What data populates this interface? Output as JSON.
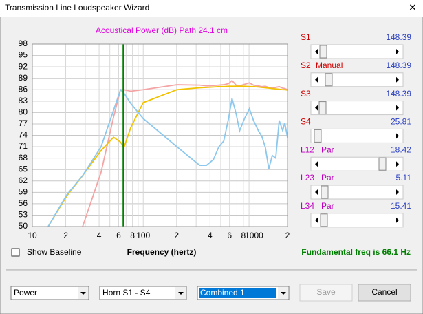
{
  "window": {
    "title": "Transmission Line Loudspeaker Wizard"
  },
  "chart_data": {
    "type": "line",
    "title": "Acoustical Power (dB)   Path 24.1 cm",
    "xlabel": "Frequency (hertz)",
    "xscale": "log",
    "xlim": [
      10,
      2000
    ],
    "ylim": [
      50,
      98
    ],
    "grid": true,
    "yticks": [
      98,
      95,
      92,
      89,
      86,
      83,
      80,
      77,
      74,
      71,
      68,
      65,
      62,
      59,
      56,
      53,
      50
    ],
    "xticks": [
      {
        "value": 10,
        "label": "10"
      },
      {
        "value": 20,
        "label": "2"
      },
      {
        "value": 30,
        "label": null
      },
      {
        "value": 40,
        "label": "4"
      },
      {
        "value": 50,
        "label": null
      },
      {
        "value": 60,
        "label": "6"
      },
      {
        "value": 70,
        "label": null
      },
      {
        "value": 80,
        "label": "8"
      },
      {
        "value": 90,
        "label": null
      },
      {
        "value": 100,
        "label": "100"
      },
      {
        "value": 200,
        "label": "2"
      },
      {
        "value": 300,
        "label": null
      },
      {
        "value": 400,
        "label": "4"
      },
      {
        "value": 500,
        "label": null
      },
      {
        "value": 600,
        "label": "6"
      },
      {
        "value": 700,
        "label": null
      },
      {
        "value": 800,
        "label": "8"
      },
      {
        "value": 900,
        "label": null
      },
      {
        "value": 1000,
        "label": "1000"
      },
      {
        "value": 2000,
        "label": "2"
      }
    ],
    "x": [
      13.9,
      20.4,
      28.4,
      41.7,
      54,
      62.4,
      67,
      77.1,
      100,
      201,
      323,
      372,
      429,
      481,
      532,
      588,
      632,
      688,
      740,
      819,
      906,
      988,
      1093,
      1175,
      1263,
      1357,
      1458,
      1567,
      1684,
      1810,
      1890,
      2000
    ],
    "series": [
      {
        "color": "#f4a4a4",
        "values": [
          null,
          null,
          50,
          64.3,
          78.8,
          86,
          86,
          85.6,
          86,
          87.3,
          87.2,
          87,
          87.1,
          87.2,
          87.3,
          87.6,
          88.4,
          87.2,
          87,
          87.4,
          87.8,
          87.2,
          87,
          86.8,
          86.9,
          86.6,
          86.5,
          86.6,
          86.8,
          86.4,
          86.3,
          86
        ]
      },
      {
        "color": "#f2c200",
        "values": [
          50,
          58,
          63.4,
          70,
          73.5,
          72.2,
          70.8,
          76,
          82.6,
          86,
          86.5,
          86.6,
          86.7,
          86.8,
          86.8,
          86.9,
          86.9,
          86.9,
          86.9,
          86.9,
          86.8,
          86.8,
          86.7,
          86.6,
          86.5,
          86.4,
          86.3,
          86.2,
          86.1,
          86,
          86,
          85.9
        ]
      },
      {
        "color": "#8cc8ee",
        "values": [
          50,
          58.3,
          63.4,
          71,
          80.6,
          86,
          85.1,
          82.4,
          78.4,
          71,
          66.1,
          66.1,
          67.6,
          71,
          72.5,
          78.4,
          83.7,
          79.7,
          75.2,
          78.4,
          81,
          77.9,
          75.2,
          73.7,
          70.8,
          65.2,
          68.7,
          68,
          77.9,
          75.2,
          77.3,
          73.4
        ]
      }
    ],
    "marker_x": 66.1,
    "marker_color": "#008000"
  },
  "sliders": [
    {
      "label": "S1",
      "value": 148.39
    },
    {
      "label": "S2",
      "mode": "Manual",
      "value": 148.39
    },
    {
      "label": "S3",
      "value": 148.39
    },
    {
      "label": "S4",
      "value": 25.81
    },
    {
      "label": "L12",
      "mode": "Par",
      "value": 18.42
    },
    {
      "label": "L23",
      "mode": "Par",
      "value": 5.11
    },
    {
      "label": "L34",
      "mode": "Par",
      "value": 15.41
    }
  ],
  "show_baseline": "Show Baseline",
  "status": "Fundamental freq is 66.1 Hz",
  "dropdowns": [
    "Power",
    "Horn S1 - S4",
    "Combined 1"
  ],
  "buttons": [
    "Save",
    "Cancel"
  ]
}
